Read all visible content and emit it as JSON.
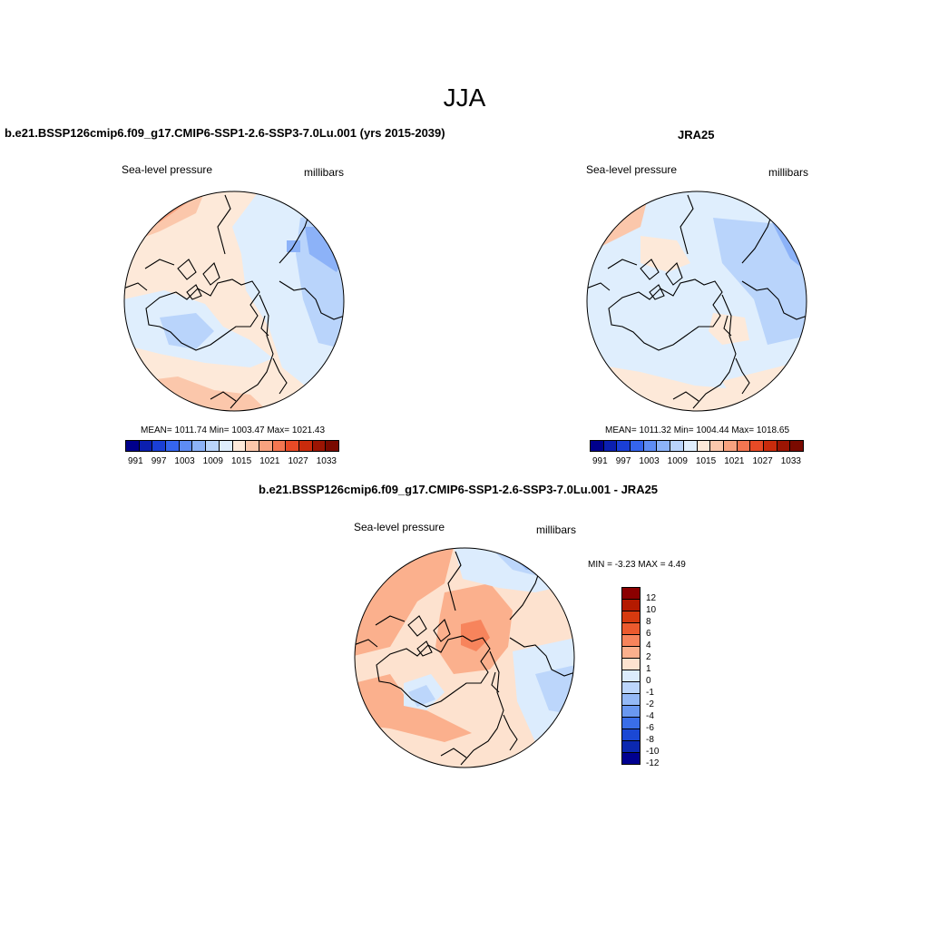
{
  "main_title": "JJA",
  "panels": [
    {
      "title": "b.e21.BSSP126cmip6.f09_g17.CMIP6-SSP1-2.6-SSP3-7.0Lu.001 (yrs 2015-2039)",
      "left_label": "Sea-level pressure",
      "right_label": "millibars",
      "stats": "MEAN= 1011.74  Min= 1003.47  Max= 1021.43"
    },
    {
      "title": "JRA25",
      "left_label": "Sea-level pressure",
      "right_label": "millibars",
      "stats": "MEAN= 1011.32  Min= 1004.44  Max= 1018.65"
    },
    {
      "title": "b.e21.BSSP126cmip6.f09_g17.CMIP6-SSP1-2.6-SSP3-7.0Lu.001 - JRA25",
      "left_label": "Sea-level pressure",
      "right_label": "millibars",
      "stats": "MIN =  -3.23 MAX =   4.49"
    }
  ],
  "abs_colorbar": {
    "colors": [
      "#00008c",
      "#0b1fb0",
      "#1a3fd6",
      "#3565ee",
      "#5e8cf4",
      "#8cb2f8",
      "#b9d4fb",
      "#dfeefd",
      "#fde9d9",
      "#fbc7ab",
      "#f8a27f",
      "#f37651",
      "#e74a26",
      "#c92b0c",
      "#9c1503",
      "#7a0a00"
    ],
    "ticks": [
      "991",
      "997",
      "1003",
      "1009",
      "1015",
      "1021",
      "1027",
      "1033"
    ]
  },
  "diff_colorbar": {
    "colors": [
      "#8b0000",
      "#b41a00",
      "#d63a0f",
      "#ec5a2e",
      "#f7845c",
      "#fbb08d",
      "#fde2cf",
      "#dcecfd",
      "#bcd6fb",
      "#94b9f6",
      "#6a98f0",
      "#3a6ee8",
      "#1b48d4",
      "#0b28b0",
      "#000090"
    ],
    "ticks": [
      "12",
      "10",
      "8",
      "6",
      "4",
      "2",
      "1",
      "0",
      "-1",
      "-2",
      "-4",
      "-6",
      "-8",
      "-10",
      "-12"
    ]
  }
}
